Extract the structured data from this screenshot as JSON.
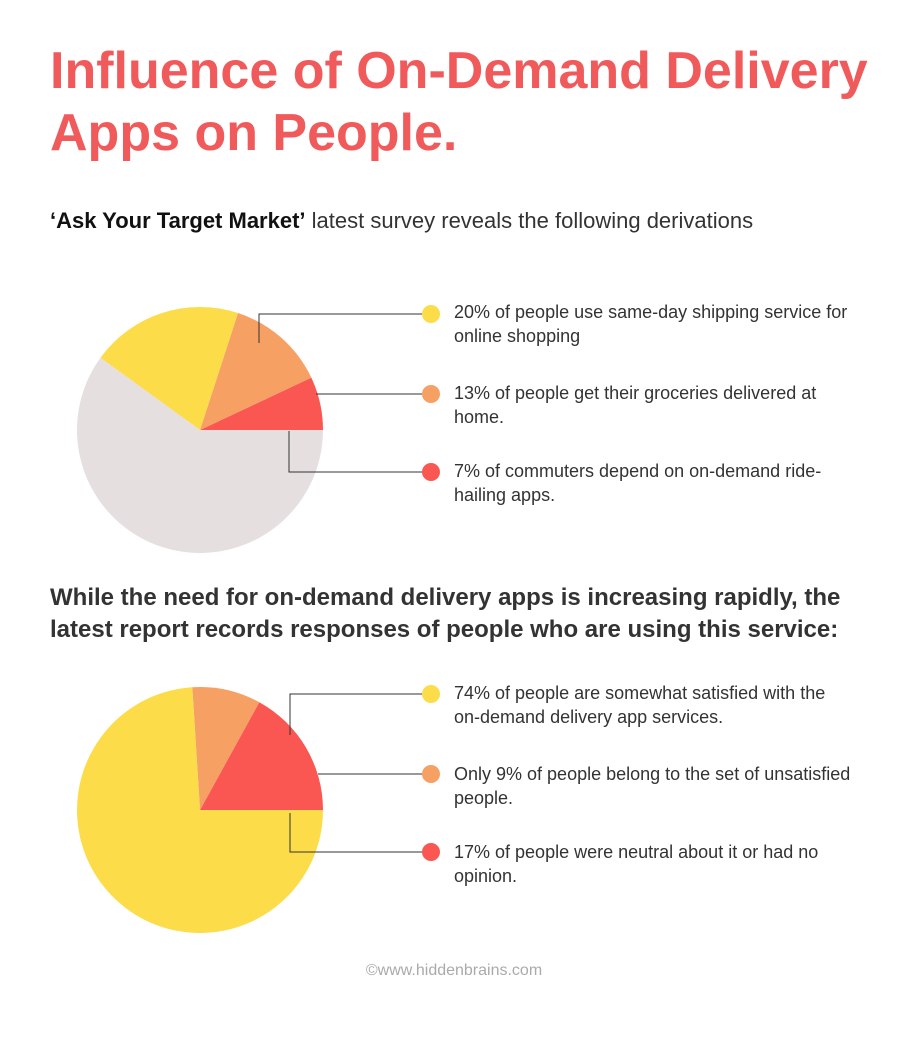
{
  "header": {
    "title": "Influence of On-Demand Delivery Apps on People.",
    "subtitle_quote": "‘Ask Your Target Market’",
    "subtitle_rest": " latest survey reveals the following derivations"
  },
  "middle_text": "While the need for on-demand delivery apps is increasing rapidly, the latest report records responses of people who are using this service:",
  "footer": "©www.hiddenbrains.com",
  "colors": {
    "yellow": "#fddc4a",
    "orange": "#f7a063",
    "red": "#fb5752",
    "grey": "#e6dfe0",
    "title": "#f05a5b"
  },
  "chart_data": [
    {
      "type": "pie",
      "slices": [
        {
          "value": 20,
          "color": "#fddc4a",
          "text": "20% of people use same-day shipping service for online shopping"
        },
        {
          "value": 13,
          "color": "#f7a063",
          "text": "13% of people get their groceries delivered at home."
        },
        {
          "value": 7,
          "color": "#fb5752",
          "text": "7% of commuters depend on on-demand ride-hailing apps."
        }
      ]
    },
    {
      "type": "pie",
      "slices": [
        {
          "value": 74,
          "color": "#fddc4a",
          "text": "74% of people are somewhat satisfied with the on-demand delivery app services."
        },
        {
          "value": 9,
          "color": "#f7a063",
          "text": "Only 9% of people belong to the set of unsatisfied people."
        },
        {
          "value": 17,
          "color": "#fb5752",
          "text": "17% of people were neutral about it or had no opinion."
        }
      ]
    }
  ]
}
